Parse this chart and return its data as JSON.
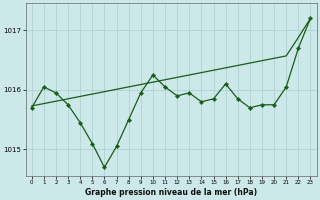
{
  "title": "Graphe pression niveau de la mer (hPa)",
  "background_color": "#cce8e8",
  "grid_color": "#aacece",
  "line_color": "#1a5c1a",
  "xlim": [
    -0.5,
    23.5
  ],
  "ylim": [
    1014.55,
    1017.45
  ],
  "yticks": [
    1015,
    1016,
    1017
  ],
  "xticks": [
    0,
    1,
    2,
    3,
    4,
    5,
    6,
    7,
    8,
    9,
    10,
    11,
    12,
    13,
    14,
    15,
    16,
    17,
    18,
    19,
    20,
    21,
    22,
    23
  ],
  "jagged_y": [
    1015.7,
    1016.05,
    1015.95,
    1015.75,
    1015.45,
    1015.1,
    1014.7,
    1015.05,
    1015.5,
    1015.95,
    1016.25,
    1016.05,
    1015.9,
    1015.95,
    1015.8,
    1015.85,
    1016.1,
    1015.85,
    1015.7,
    1015.75,
    1015.75,
    1016.05,
    1016.7,
    1017.2
  ],
  "smooth_y": [
    1015.73,
    1015.77,
    1015.81,
    1015.85,
    1015.89,
    1015.93,
    1015.97,
    1016.01,
    1016.05,
    1016.09,
    1016.13,
    1016.17,
    1016.21,
    1016.25,
    1016.29,
    1016.33,
    1016.37,
    1016.41,
    1016.45,
    1016.49,
    1016.53,
    1016.57,
    1016.88,
    1017.2
  ]
}
